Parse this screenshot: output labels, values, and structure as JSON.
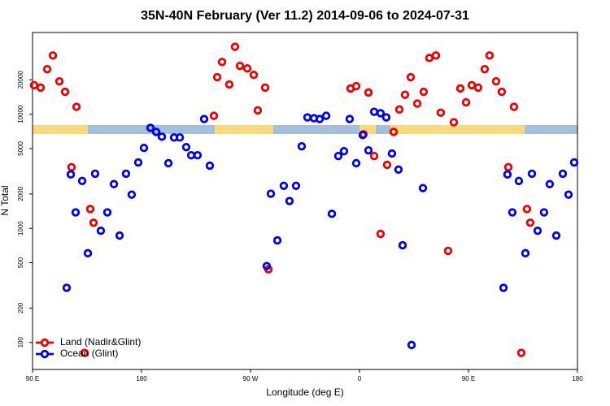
{
  "chart_data": {
    "type": "scatter",
    "title": "35N-40N February (Ver 11.2)   2014-09-06 to 2024-07-31",
    "xlabel": "Longitude (deg E)",
    "ylabel": "N Total",
    "ylog": true,
    "xlim": [
      90,
      540
    ],
    "ylim": [
      58,
      52000
    ],
    "xticks": [
      {
        "value": 90,
        "label": "90 E"
      },
      180,
      {
        "value": 270,
        "label": "90 W"
      },
      {
        "value": 360,
        "label": "0"
      },
      {
        "value": 450,
        "label": "90 E"
      },
      {
        "value": 540,
        "label": "180"
      }
    ],
    "yticks": [
      100,
      200,
      500,
      1000,
      2000,
      5000,
      10000,
      20000
    ],
    "legend": "bottomleft",
    "series": [
      {
        "name": "Land (Nadir&Glint)",
        "color": "#ee0000",
        "x": [
          91.3,
          96.7,
          102.1,
          106.8,
          112.2,
          116.9,
          122.2,
          126.3,
          133.0,
          137.7,
          140.4,
          239.8,
          242.5,
          246.5,
          252.5,
          257.2,
          261.3,
          267.3,
          272.7,
          276.0,
          282.1,
          284.8,
          352.6,
          357.3,
          363.3,
          367.4,
          372.1,
          377.4,
          382.8,
          388.2,
          392.9,
          397.6,
          402.3,
          407.7,
          413.0,
          417.7,
          423.1,
          427.1,
          433.2,
          437.9,
          443.3,
          448.0,
          452.7,
          458.0,
          463.4,
          467.4,
          472.8,
          477.5,
          482.9,
          487.6,
          493.6,
          498.3,
          501.0
        ],
        "y": [
          17950,
          17100,
          24800,
          32700,
          19400,
          15700,
          3430,
          11600,
          81,
          1476,
          1120,
          9680,
          21100,
          28700,
          18200,
          39000,
          26500,
          25200,
          22100,
          10800,
          17100,
          437,
          16800,
          17600,
          6670,
          15500,
          4300,
          893,
          3600,
          7000,
          11000,
          14800,
          21100,
          12400,
          15700,
          31100,
          32700,
          10300,
          635,
          8500,
          16800,
          12700,
          17950,
          17100,
          24800,
          32700,
          19400,
          15700,
          3430,
          11600,
          81,
          1476,
          1120
        ]
      },
      {
        "name": "Ocean (Glint)",
        "color": "#0000ee",
        "x": [
          118.2,
          121.6,
          125.6,
          131.0,
          135.7,
          141.7,
          146.4,
          151.8,
          157.2,
          161.9,
          167.2,
          171.9,
          177.3,
          182.0,
          187.4,
          192.1,
          196.8,
          202.2,
          206.9,
          211.6,
          216.9,
          221.0,
          226.3,
          231.7,
          236.4,
          283.4,
          286.8,
          292.2,
          297.5,
          302.2,
          307.6,
          312.3,
          317.0,
          322.4,
          327.1,
          332.5,
          337.2,
          342.5,
          347.2,
          351.9,
          357.3,
          362.7,
          367.4,
          372.1,
          377.4,
          382.1,
          386.8,
          392.2,
          395.6,
          403.0,
          412.4,
          478.9,
          482.2,
          486.2,
          491.6,
          497.0,
          502.4,
          507.1,
          512.4,
          517.1,
          522.5,
          527.9,
          532.6,
          537.3
        ],
        "y": [
          301,
          2965,
          1380,
          2600,
          605,
          3010,
          952,
          1380,
          2440,
          864,
          3010,
          1975,
          3780,
          5060,
          7590,
          7000,
          6350,
          3720,
          6250,
          6250,
          5150,
          4370,
          4370,
          9070,
          3540,
          467,
          2010,
          784,
          2360,
          1735,
          2360,
          5230,
          9370,
          9220,
          9070,
          9680,
          1340,
          4300,
          4740,
          9070,
          3720,
          6560,
          4820,
          10500,
          10200,
          9370,
          4520,
          3270,
          711,
          95,
          2250,
          301,
          2965,
          1380,
          2600,
          605,
          3010,
          952,
          1380,
          2440,
          864,
          3010,
          1975,
          3780
        ]
      }
    ]
  }
}
